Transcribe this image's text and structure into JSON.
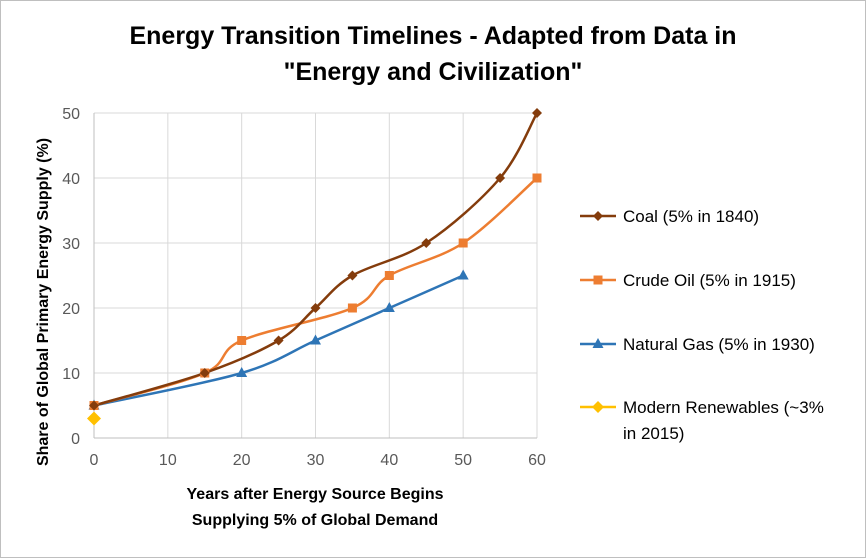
{
  "chart_data": {
    "type": "line",
    "title_lines": [
      "Energy Transition Timelines - Adapted from Data in",
      "\"Energy and Civilization\""
    ],
    "xlabel_lines": [
      "Years after Energy Source Begins",
      "Supplying 5% of Global Demand"
    ],
    "ylabel": "Share of Global Primary Energy Supply (%)",
    "xlim": [
      0,
      60
    ],
    "ylim": [
      0,
      50
    ],
    "xticks": [
      0,
      10,
      20,
      30,
      40,
      50,
      60
    ],
    "yticks": [
      0,
      10,
      20,
      30,
      40,
      50
    ],
    "grid": true,
    "legend_position": "right",
    "series": [
      {
        "name": "Coal (5% in 1840)",
        "legend_lines": [
          "Coal (5% in 1840)"
        ],
        "color": "#843C0C",
        "marker": "diamond",
        "smooth": true,
        "points": [
          [
            0,
            5
          ],
          [
            15,
            10
          ],
          [
            25,
            15
          ],
          [
            30,
            20
          ],
          [
            35,
            25
          ],
          [
            45,
            30
          ],
          [
            55,
            40
          ],
          [
            60,
            50
          ]
        ]
      },
      {
        "name": "Crude Oil (5% in 1915)",
        "legend_lines": [
          "Crude Oil (5% in 1915)"
        ],
        "color": "#ED7D31",
        "marker": "square",
        "smooth": true,
        "points": [
          [
            0,
            5
          ],
          [
            15,
            10
          ],
          [
            20,
            15
          ],
          [
            35,
            20
          ],
          [
            40,
            25
          ],
          [
            50,
            30
          ],
          [
            60,
            40
          ]
        ]
      },
      {
        "name": "Natural Gas (5% in 1930)",
        "legend_lines": [
          "Natural Gas (5% in 1930)"
        ],
        "color": "#2E75B6",
        "marker": "triangle",
        "smooth": true,
        "points": [
          [
            0,
            5
          ],
          [
            20,
            10
          ],
          [
            30,
            15
          ],
          [
            40,
            20
          ],
          [
            50,
            25
          ]
        ]
      },
      {
        "name": "Modern Renewables (~3% in 2015)",
        "legend_lines": [
          "Modern Renewables (~3%",
          "in 2015)"
        ],
        "color": "#FFC000",
        "marker": "diamond",
        "smooth": false,
        "points": [
          [
            0,
            3
          ]
        ]
      }
    ]
  }
}
